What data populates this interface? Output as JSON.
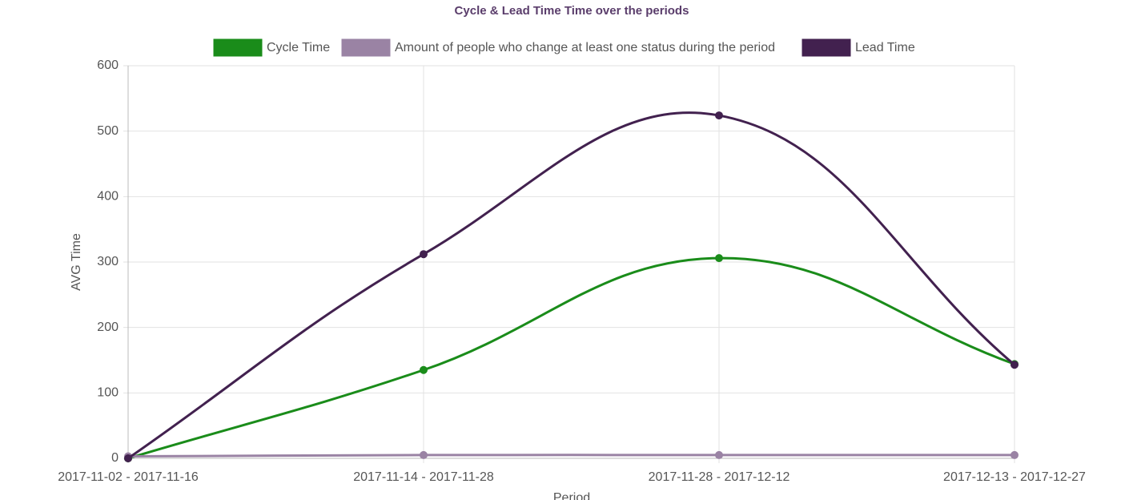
{
  "chart_data": {
    "type": "line",
    "title": "Cycle & Lead Time Time over the periods",
    "x_label": "Period",
    "y_label": "AVG Time",
    "categories": [
      "2017-11-02 - 2017-11-16",
      "2017-11-14 - 2017-11-28",
      "2017-11-28 - 2017-12-12",
      "2017-12-13 - 2017-12-27"
    ],
    "series": [
      {
        "name": "Cycle Time",
        "color": "#1a8c1a",
        "values": [
          0,
          135,
          306,
          144
        ]
      },
      {
        "name": "Amount of people who change at least one status during the period",
        "color": "#9a83a4",
        "values": [
          3,
          5,
          5,
          5
        ]
      },
      {
        "name": "Lead Time",
        "color": "#42214f",
        "values": [
          0,
          312,
          524,
          143
        ]
      }
    ],
    "ylim": [
      0,
      600
    ],
    "yticks": [
      0,
      100,
      200,
      300,
      400,
      500,
      600
    ],
    "grid": true
  }
}
